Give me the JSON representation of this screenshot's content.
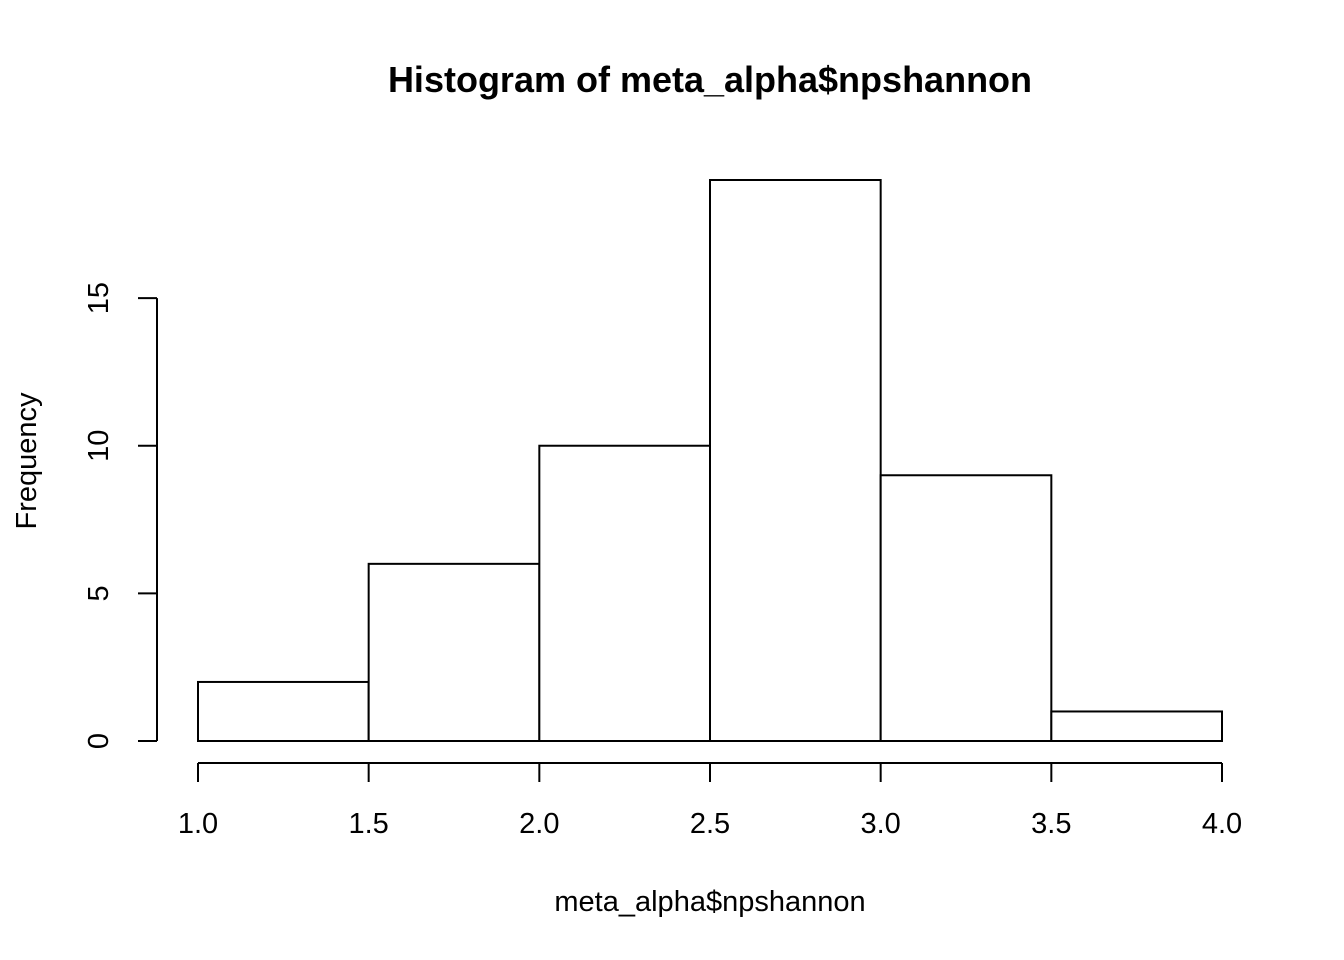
{
  "chart_data": {
    "type": "bar",
    "title": "Histogram of meta_alpha$npshannon",
    "xlabel": "meta_alpha$npshannon",
    "ylabel": "Frequency",
    "bins": [
      {
        "x_start": 1.0,
        "x_end": 1.5,
        "value": 2
      },
      {
        "x_start": 1.5,
        "x_end": 2.0,
        "value": 6
      },
      {
        "x_start": 2.0,
        "x_end": 2.5,
        "value": 10
      },
      {
        "x_start": 2.5,
        "x_end": 3.0,
        "value": 19
      },
      {
        "x_start": 3.0,
        "x_end": 3.5,
        "value": 9
      },
      {
        "x_start": 3.5,
        "x_end": 4.0,
        "value": 1
      }
    ],
    "xlim": [
      1.0,
      4.0
    ],
    "ylim": [
      0,
      19
    ],
    "x_ticks": [
      1.0,
      1.5,
      2.0,
      2.5,
      3.0,
      3.5,
      4.0
    ],
    "x_tick_labels": [
      "1.0",
      "1.5",
      "2.0",
      "2.5",
      "3.0",
      "3.5",
      "4.0"
    ],
    "y_ticks": [
      0,
      5,
      10,
      15
    ],
    "y_tick_labels": [
      "0",
      "5",
      "10",
      "15"
    ],
    "grid": false,
    "legend": "none",
    "colors": {
      "bar_fill": "#ffffff",
      "bar_stroke": "#000000",
      "axis": "#000000",
      "background": "#ffffff"
    }
  }
}
